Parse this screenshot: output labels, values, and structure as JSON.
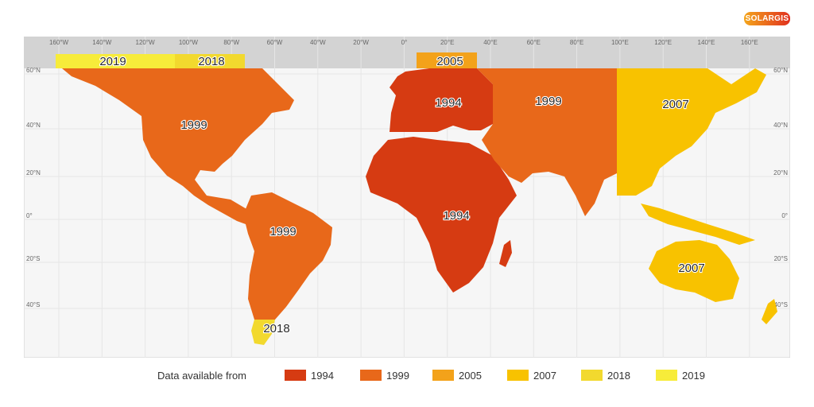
{
  "brand": {
    "logo_text": "SOLARGIS"
  },
  "map": {
    "ocean_color": "#f6f6f6",
    "polar_color": "#d3d3d3",
    "lon_labels": [
      "160°W",
      "140°W",
      "120°W",
      "100°W",
      "80°W",
      "60°W",
      "40°W",
      "20°W",
      "0°",
      "20°E",
      "40°E",
      "60°E",
      "80°E",
      "100°E",
      "120°E",
      "140°E",
      "160°E"
    ],
    "lat_labels_left": [
      "60°N",
      "40°N",
      "20°N",
      "0°",
      "20°S",
      "40°S"
    ],
    "lat_labels_right": [
      "60°N",
      "40°N",
      "20°N",
      "0°",
      "20°S",
      "40°S"
    ],
    "regions": [
      {
        "id": "north-america",
        "year": "1999"
      },
      {
        "id": "south-america",
        "year": "1999"
      },
      {
        "id": "patagonia",
        "year": "2018"
      },
      {
        "id": "europe",
        "year": "1994"
      },
      {
        "id": "africa",
        "year": "1994"
      },
      {
        "id": "west-asia",
        "year": "1999"
      },
      {
        "id": "east-asia",
        "year": "2007"
      },
      {
        "id": "australia",
        "year": "2007"
      },
      {
        "id": "arctic-west",
        "year": "2019"
      },
      {
        "id": "arctic-canada",
        "year": "2018"
      },
      {
        "id": "scandinavia-north",
        "year": "2005"
      }
    ]
  },
  "legend": {
    "title": "Data available from",
    "items": [
      {
        "label": "1994",
        "color": "#d63b12"
      },
      {
        "label": "1999",
        "color": "#e8681a"
      },
      {
        "label": "2005",
        "color": "#f3a21a"
      },
      {
        "label": "2007",
        "color": "#f8c200"
      },
      {
        "label": "2018",
        "color": "#f2d92e"
      },
      {
        "label": "2019",
        "color": "#f7ec3a"
      }
    ]
  }
}
